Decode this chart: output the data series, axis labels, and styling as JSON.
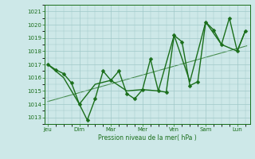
{
  "xlabel": "Pression niveau de la mer( hPa )",
  "bg_color": "#cde8e8",
  "grid_color": "#a0c8c8",
  "line_color": "#1a6e1a",
  "ylim": [
    1012.5,
    1021.5
  ],
  "yticks": [
    1013,
    1014,
    1015,
    1016,
    1017,
    1018,
    1019,
    1020,
    1021
  ],
  "day_labels": [
    "Jeu",
    "Dim",
    "Mar",
    "Mer",
    "Ven",
    "Sam",
    "Lun"
  ],
  "day_positions": [
    0,
    1,
    2,
    3,
    4,
    5,
    6
  ],
  "xlim": [
    -0.1,
    6.4
  ],
  "series1_x": [
    0.0,
    0.25,
    0.5,
    0.75,
    1.0,
    1.25,
    1.5,
    1.75,
    2.0,
    2.25,
    2.5,
    2.75,
    3.0,
    3.25,
    3.5,
    3.75,
    4.0,
    4.25,
    4.5,
    4.75,
    5.0,
    5.25,
    5.5,
    5.75,
    6.0,
    6.25
  ],
  "series1_y": [
    1017.0,
    1016.6,
    1016.3,
    1015.6,
    1014.0,
    1012.8,
    1014.4,
    1016.5,
    1015.8,
    1016.5,
    1014.8,
    1014.4,
    1015.1,
    1017.4,
    1015.0,
    1014.9,
    1019.2,
    1018.7,
    1015.4,
    1015.7,
    1020.2,
    1019.6,
    1018.5,
    1020.5,
    1018.0,
    1019.5
  ],
  "series2_x": [
    0.0,
    0.5,
    1.0,
    1.5,
    2.0,
    2.5,
    3.0,
    3.5,
    4.0,
    4.5,
    5.0,
    5.5,
    6.0,
    6.25
  ],
  "series2_y": [
    1017.0,
    1016.0,
    1014.0,
    1015.5,
    1015.8,
    1015.0,
    1015.1,
    1015.0,
    1019.2,
    1015.7,
    1020.2,
    1018.5,
    1018.0,
    1019.5
  ],
  "trend_x": [
    0.0,
    6.3
  ],
  "trend_y": [
    1014.2,
    1018.4
  ],
  "marker_size": 2.5,
  "line_width": 1.0
}
